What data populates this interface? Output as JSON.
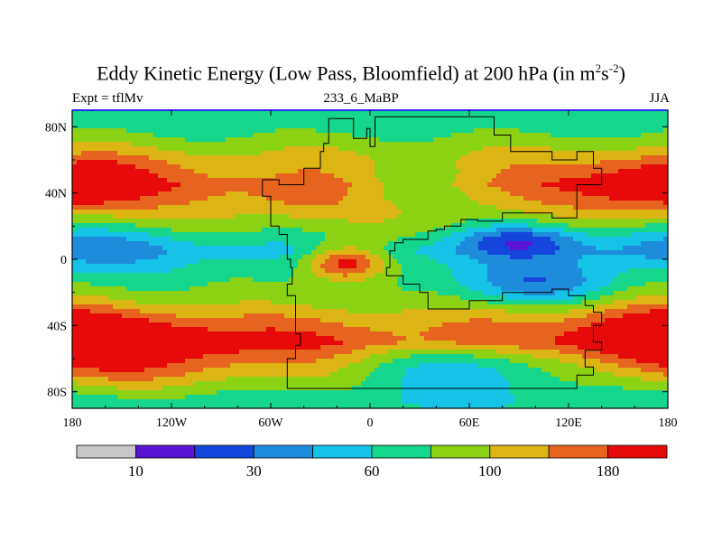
{
  "chart_data": {
    "type": "heatmap",
    "title": "Eddy Kinetic Energy (Low Pass, Bloomfield) at 200 hPa (in m",
    "title_unit_sup1": "2",
    "title_unit_mid": "s",
    "title_unit_sup2": "-2",
    "title_end": ")",
    "left_label": "Expt = tflMv",
    "center_label": "233_6_MaBP",
    "right_label": "JJA",
    "x_ticks": [
      {
        "value": -180,
        "label": "180"
      },
      {
        "value": -120,
        "label": "120W"
      },
      {
        "value": -60,
        "label": "60W"
      },
      {
        "value": 0,
        "label": "0"
      },
      {
        "value": 60,
        "label": "60E"
      },
      {
        "value": 120,
        "label": "120E"
      },
      {
        "value": 180,
        "label": "180"
      }
    ],
    "y_ticks": [
      {
        "value": 80,
        "label": "80N"
      },
      {
        "value": 40,
        "label": "40N"
      },
      {
        "value": 0,
        "label": "0"
      },
      {
        "value": -40,
        "label": "40S"
      },
      {
        "value": -80,
        "label": "80S"
      }
    ],
    "xlim": [
      -180,
      180
    ],
    "ylim": [
      -90,
      90
    ],
    "colorbar": {
      "colors": [
        "#c8c8c8",
        "#5a14d2",
        "#1446dc",
        "#1e8cdc",
        "#14c3e6",
        "#14d68c",
        "#8cd214",
        "#dcb414",
        "#e6641e",
        "#e60a0a"
      ],
      "labels": [
        {
          "after_index": 1,
          "text": "10"
        },
        {
          "after_index": 3,
          "text": "30"
        },
        {
          "after_index": 5,
          "text": "60"
        },
        {
          "after_index": 7,
          "text": "100"
        },
        {
          "after_index": 9,
          "text": "180"
        }
      ],
      "levels": [
        5,
        10,
        20,
        30,
        45,
        60,
        80,
        100,
        140,
        180
      ]
    },
    "field_model": {
      "zonal_bands": [
        {
          "lat": 80,
          "level": 5
        },
        {
          "lat": 60,
          "level": 7
        },
        {
          "lat": 45,
          "level": 8
        },
        {
          "lat": 20,
          "level": 6
        },
        {
          "lat": 5,
          "level": 4
        },
        {
          "lat": -10,
          "level": 5
        },
        {
          "lat": -25,
          "level": 6
        },
        {
          "lat": -50,
          "level": 9
        },
        {
          "lat": -70,
          "level": 7
        },
        {
          "lat": -85,
          "level": 5
        }
      ],
      "anomalies": [
        {
          "lon": -165,
          "lat": 45,
          "dlon": 25,
          "dlat": 12,
          "amp": 1.6
        },
        {
          "lon": 165,
          "lat": 45,
          "dlon": 30,
          "dlat": 12,
          "amp": 1.6
        },
        {
          "lon": -150,
          "lat": -50,
          "dlon": 45,
          "dlat": 15,
          "amp": 1.5
        },
        {
          "lon": 165,
          "lat": -45,
          "dlon": 35,
          "dlat": 15,
          "amp": 1.6
        },
        {
          "lon": -15,
          "lat": -2,
          "dlon": 18,
          "dlat": 8,
          "amp": 4.5
        },
        {
          "lon": 90,
          "lat": 12,
          "dlon": 25,
          "dlat": 7,
          "amp": -3.0
        },
        {
          "lon": 100,
          "lat": -15,
          "dlon": 35,
          "dlat": 9,
          "amp": -2.5
        },
        {
          "lon": 60,
          "lat": -65,
          "dlon": 55,
          "dlat": 12,
          "amp": -3.2
        },
        {
          "lon": -170,
          "lat": 10,
          "dlon": 40,
          "dlat": 10,
          "amp": -1.5
        },
        {
          "lon": 20,
          "lat": 45,
          "dlon": 30,
          "dlat": 10,
          "amp": -1.8
        },
        {
          "lon": -40,
          "lat": 35,
          "dlon": 25,
          "dlat": 8,
          "amp": 0.8
        }
      ]
    },
    "continent_outline": [
      [
        -25,
        70
      ],
      [
        -25,
        85
      ],
      [
        -10,
        85
      ],
      [
        -10,
        73
      ],
      [
        -2,
        73
      ],
      [
        -2,
        79
      ],
      [
        0,
        79
      ],
      [
        0,
        68
      ],
      [
        3,
        68
      ],
      [
        3,
        86
      ],
      [
        75,
        86
      ],
      [
        75,
        75
      ],
      [
        85,
        75
      ],
      [
        85,
        65
      ],
      [
        110,
        65
      ],
      [
        110,
        60
      ],
      [
        125,
        60
      ],
      [
        125,
        65
      ],
      [
        135,
        65
      ],
      [
        135,
        55
      ],
      [
        140,
        55
      ],
      [
        140,
        45
      ],
      [
        125,
        45
      ],
      [
        125,
        25
      ],
      [
        110,
        25
      ],
      [
        100,
        28
      ],
      [
        80,
        28
      ],
      [
        65,
        23
      ],
      [
        55,
        24
      ],
      [
        45,
        20
      ],
      [
        40,
        18
      ],
      [
        35,
        17
      ],
      [
        20,
        12
      ],
      [
        15,
        10
      ],
      [
        12,
        5
      ],
      [
        10,
        -5
      ],
      [
        20,
        -10
      ],
      [
        30,
        -15
      ],
      [
        35,
        -20
      ],
      [
        45,
        -30
      ],
      [
        60,
        -30
      ],
      [
        80,
        -25
      ],
      [
        90,
        -20
      ],
      [
        100,
        -20
      ],
      [
        110,
        -20
      ],
      [
        120,
        -18
      ],
      [
        130,
        -22
      ],
      [
        135,
        -28
      ],
      [
        140,
        -32
      ],
      [
        135,
        -40
      ],
      [
        140,
        -50
      ],
      [
        130,
        -55
      ],
      [
        135,
        -65
      ],
      [
        125,
        -70
      ],
      [
        125,
        -78
      ],
      [
        20,
        -78
      ],
      [
        -5,
        -78
      ],
      [
        -50,
        -78
      ],
      [
        -50,
        -68
      ],
      [
        -45,
        -60
      ],
      [
        -42,
        -52
      ],
      [
        -45,
        -45
      ],
      [
        -45,
        -30
      ],
      [
        -50,
        -22
      ],
      [
        -47,
        -15
      ],
      [
        -48,
        -5
      ],
      [
        -50,
        0
      ],
      [
        -50,
        15
      ],
      [
        -55,
        15
      ],
      [
        -60,
        20
      ],
      [
        -60,
        30
      ],
      [
        -65,
        38
      ],
      [
        -55,
        48
      ],
      [
        -40,
        45
      ],
      [
        -30,
        55
      ],
      [
        -28,
        65
      ],
      [
        -25,
        70
      ]
    ]
  }
}
